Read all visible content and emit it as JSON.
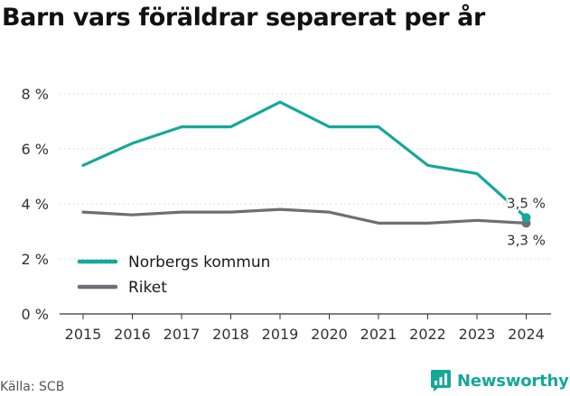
{
  "title": "Barn vars föräldrar separerat per år",
  "source": "Källa: SCB",
  "brand": {
    "name": "Newsworthy",
    "color": "#14a89a",
    "icon": "chart-bubble-icon"
  },
  "chart_data": {
    "type": "line",
    "title": "Barn vars föräldrar separerat per år",
    "xlabel": "",
    "ylabel": "",
    "x": [
      2015,
      2016,
      2017,
      2018,
      2019,
      2020,
      2021,
      2022,
      2023,
      2024
    ],
    "ylim": [
      0,
      8
    ],
    "yticks": [
      0,
      2,
      4,
      6,
      8
    ],
    "ytick_labels": [
      "0 %",
      "2 %",
      "4 %",
      "6 %",
      "8 %"
    ],
    "grid": true,
    "legend_position": "bottom-left",
    "series": [
      {
        "name": "Norbergs kommun",
        "color": "#14a89a",
        "values": [
          5.4,
          6.2,
          6.8,
          6.8,
          7.7,
          6.8,
          6.8,
          5.4,
          5.1,
          3.5
        ],
        "end_label": "3,5 %"
      },
      {
        "name": "Riket",
        "color": "#6f6e76",
        "values": [
          3.7,
          3.6,
          3.7,
          3.7,
          3.8,
          3.7,
          3.3,
          3.3,
          3.4,
          3.3
        ],
        "end_label": "3,3 %"
      }
    ]
  }
}
